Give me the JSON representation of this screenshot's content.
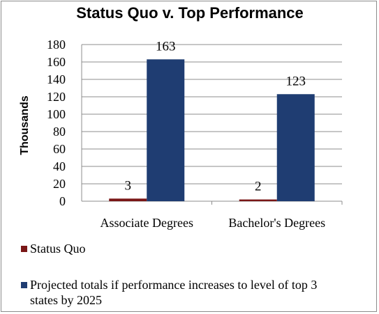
{
  "chart_data": {
    "type": "bar",
    "title": "Status Quo v. Top Performance",
    "ylabel": "Thousands",
    "xlabel": "",
    "ylim": [
      0,
      180
    ],
    "yticks": [
      0,
      20,
      40,
      60,
      80,
      100,
      120,
      140,
      160,
      180
    ],
    "grid": true,
    "legend_position": "bottom",
    "categories": [
      "Associate Degrees",
      "Bachelor's Degrees"
    ],
    "series": [
      {
        "name": "Status Quo",
        "values": [
          3,
          2
        ],
        "color": "#7a1717"
      },
      {
        "name": "Projected totals if performance increases to level of top 3 states by 2025",
        "legend_lines": [
          "Projected totals if performance increases to level of top 3",
          "states by 2025"
        ],
        "values": [
          163,
          123
        ],
        "color": "#1f3d72"
      }
    ]
  }
}
